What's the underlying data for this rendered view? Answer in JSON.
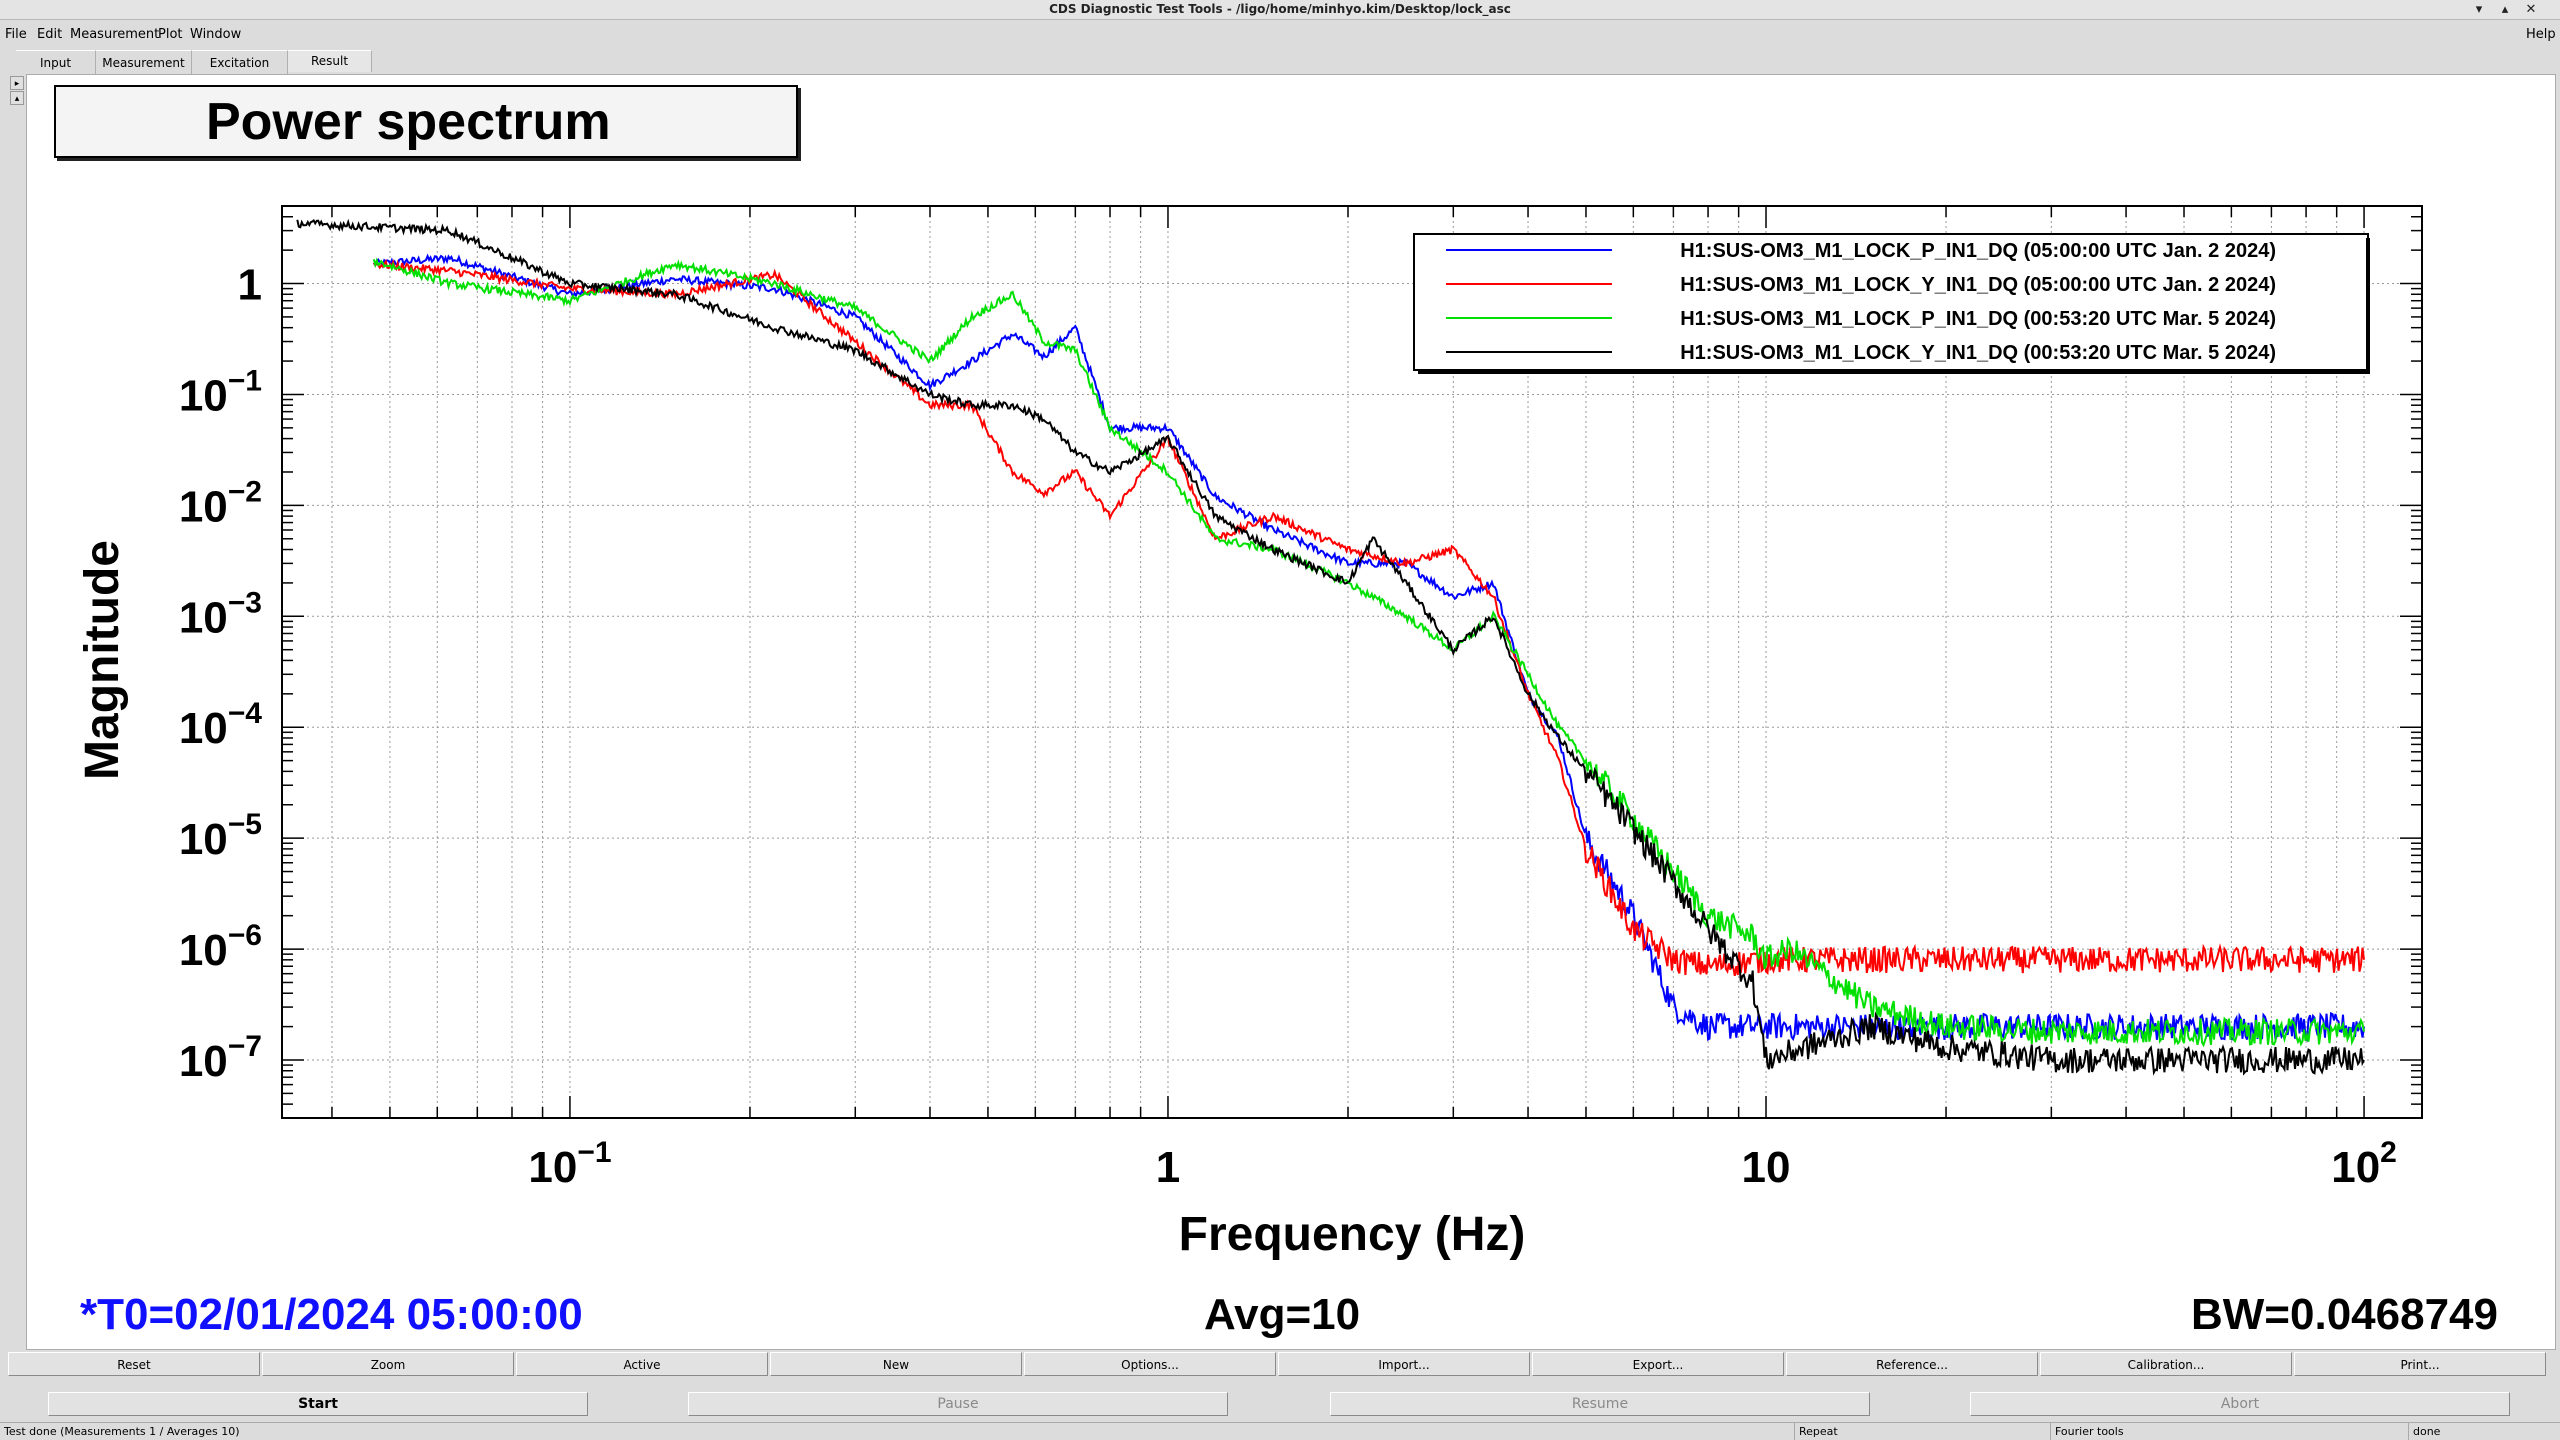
{
  "window": {
    "title": "CDS Diagnostic Test Tools - /ligo/home/minhyo.kim/Desktop/lock_asc",
    "help": "Help"
  },
  "menu": [
    "File",
    "Edit",
    "Measurement",
    "Plot",
    "Window"
  ],
  "tabs": [
    "Input",
    "Measurement",
    "Excitation",
    "Result"
  ],
  "active_tab": "Result",
  "plot": {
    "title": "Power spectrum"
  },
  "chart_data": {
    "type": "line",
    "title": "Power spectrum",
    "xlabel": "Frequency (Hz)",
    "ylabel": "Magnitude",
    "xscale": "log",
    "yscale": "log",
    "xlim": [
      0.033,
      125
    ],
    "ylim": [
      3e-08,
      5
    ],
    "x_ticks": [
      {
        "value": 0.1,
        "base": "10",
        "exp": "−1"
      },
      {
        "value": 1,
        "base": "1",
        "exp": ""
      },
      {
        "value": 10,
        "base": "10",
        "exp": ""
      },
      {
        "value": 100,
        "base": "10",
        "exp": "2"
      }
    ],
    "y_ticks": [
      {
        "value": 1,
        "base": "1",
        "exp": ""
      },
      {
        "value": 0.1,
        "base": "10",
        "exp": "−1"
      },
      {
        "value": 0.01,
        "base": "10",
        "exp": "−2"
      },
      {
        "value": 0.001,
        "base": "10",
        "exp": "−3"
      },
      {
        "value": 0.0001,
        "base": "10",
        "exp": "−4"
      },
      {
        "value": 1e-05,
        "base": "10",
        "exp": "−5"
      },
      {
        "value": 1e-06,
        "base": "10",
        "exp": "−6"
      },
      {
        "value": 1e-07,
        "base": "10",
        "exp": "−7"
      }
    ],
    "grid": true,
    "legend_position": "top-right",
    "series": [
      {
        "name": "H1:SUS-OM3_M1_LOCK_P_IN1_DQ (05:00:00 UTC Jan. 2 2024)",
        "color": "#0000ff",
        "x": [
          0.047,
          0.063,
          0.1,
          0.15,
          0.22,
          0.3,
          0.4,
          0.47,
          0.55,
          0.62,
          0.7,
          0.8,
          1.0,
          1.2,
          1.5,
          2.0,
          2.5,
          3.0,
          3.5,
          4.0,
          4.5,
          5.0,
          6.0,
          7.0,
          8.0,
          10,
          15,
          20,
          30,
          50,
          100
        ],
        "y": [
          1.5,
          1.7,
          0.8,
          1.1,
          0.9,
          0.5,
          0.12,
          0.2,
          0.35,
          0.22,
          0.4,
          0.05,
          0.05,
          0.012,
          0.006,
          0.003,
          0.003,
          0.0015,
          0.002,
          0.0002,
          8e-05,
          1e-05,
          2e-06,
          3e-07,
          2e-07,
          2e-07,
          2e-07,
          2e-07,
          2e-07,
          2e-07,
          2e-07
        ]
      },
      {
        "name": "H1:SUS-OM3_M1_LOCK_Y_IN1_DQ (05:00:00 UTC Jan. 2 2024)",
        "color": "#ff0000",
        "x": [
          0.047,
          0.063,
          0.1,
          0.15,
          0.22,
          0.3,
          0.4,
          0.47,
          0.55,
          0.62,
          0.7,
          0.8,
          1.0,
          1.2,
          1.5,
          2.0,
          2.5,
          3.0,
          3.5,
          4.0,
          4.5,
          5.0,
          6.0,
          7.0,
          8.0,
          10,
          15,
          20,
          30,
          50,
          100
        ],
        "y": [
          1.5,
          1.3,
          0.9,
          0.8,
          1.2,
          0.3,
          0.08,
          0.08,
          0.02,
          0.013,
          0.02,
          0.008,
          0.04,
          0.005,
          0.008,
          0.004,
          0.003,
          0.004,
          0.0015,
          0.0002,
          5e-05,
          8e-06,
          1.5e-06,
          8e-07,
          7e-07,
          8e-07,
          8e-07,
          8e-07,
          8e-07,
          8e-07,
          8e-07
        ]
      },
      {
        "name": "H1:SUS-OM3_M1_LOCK_P_IN1_DQ (00:53:20 UTC Mar. 5 2024)",
        "color": "#00e000",
        "x": [
          0.047,
          0.063,
          0.1,
          0.15,
          0.22,
          0.3,
          0.4,
          0.47,
          0.55,
          0.62,
          0.7,
          0.8,
          1.0,
          1.2,
          1.5,
          2.0,
          2.5,
          3.0,
          3.5,
          4.0,
          4.5,
          5.0,
          6.0,
          7.0,
          8.0,
          9.5,
          10,
          11,
          15,
          20,
          30,
          50,
          100
        ],
        "y": [
          1.6,
          1.0,
          0.7,
          1.5,
          1.0,
          0.6,
          0.2,
          0.5,
          0.8,
          0.3,
          0.25,
          0.05,
          0.02,
          0.005,
          0.004,
          0.002,
          0.001,
          0.0005,
          0.001,
          0.0003,
          0.0001,
          5e-05,
          1.5e-05,
          5e-06,
          2e-06,
          1.3e-06,
          8e-07,
          1e-06,
          3e-07,
          2e-07,
          1.8e-07,
          1.8e-07,
          1.8e-07
        ]
      },
      {
        "name": "H1:SUS-OM3_M1_LOCK_Y_IN1_DQ (00:53:20 UTC Mar. 5 2024)",
        "color": "#000000",
        "x": [
          0.035,
          0.063,
          0.1,
          0.15,
          0.22,
          0.3,
          0.4,
          0.47,
          0.55,
          0.62,
          0.7,
          0.8,
          1.0,
          1.2,
          1.5,
          2.0,
          2.2,
          2.5,
          3.0,
          3.5,
          4.0,
          4.5,
          5.0,
          6.0,
          7.0,
          8.0,
          9.5,
          10,
          15,
          20,
          30,
          50,
          100
        ],
        "y": [
          3.5,
          3.0,
          1.0,
          0.8,
          0.4,
          0.25,
          0.1,
          0.08,
          0.08,
          0.06,
          0.03,
          0.02,
          0.04,
          0.008,
          0.004,
          0.002,
          0.005,
          0.002,
          0.0005,
          0.001,
          0.0002,
          8e-05,
          4e-05,
          1.2e-05,
          4e-06,
          1.5e-06,
          5e-07,
          1e-07,
          2e-07,
          1.3e-07,
          1e-07,
          1e-07,
          1e-07
        ]
      }
    ]
  },
  "status": {
    "t0": "*T0=02/01/2024 05:00:00",
    "avg": "Avg=10",
    "bw": "BW=0.0468749"
  },
  "buttons_row1": [
    "Reset",
    "Zoom",
    "Active",
    "New",
    "Options...",
    "Import...",
    "Export...",
    "Reference...",
    "Calibration...",
    "Print..."
  ],
  "buttons_row2": [
    {
      "label": "Start",
      "enabled": true
    },
    {
      "label": "Pause",
      "enabled": false
    },
    {
      "label": "Resume",
      "enabled": false
    },
    {
      "label": "Abort",
      "enabled": false
    }
  ],
  "statusbar": {
    "message": "Test done (Measurements 1 / Averages 10)",
    "repeat": "Repeat",
    "tool": "Fourier tools",
    "state": "done"
  }
}
